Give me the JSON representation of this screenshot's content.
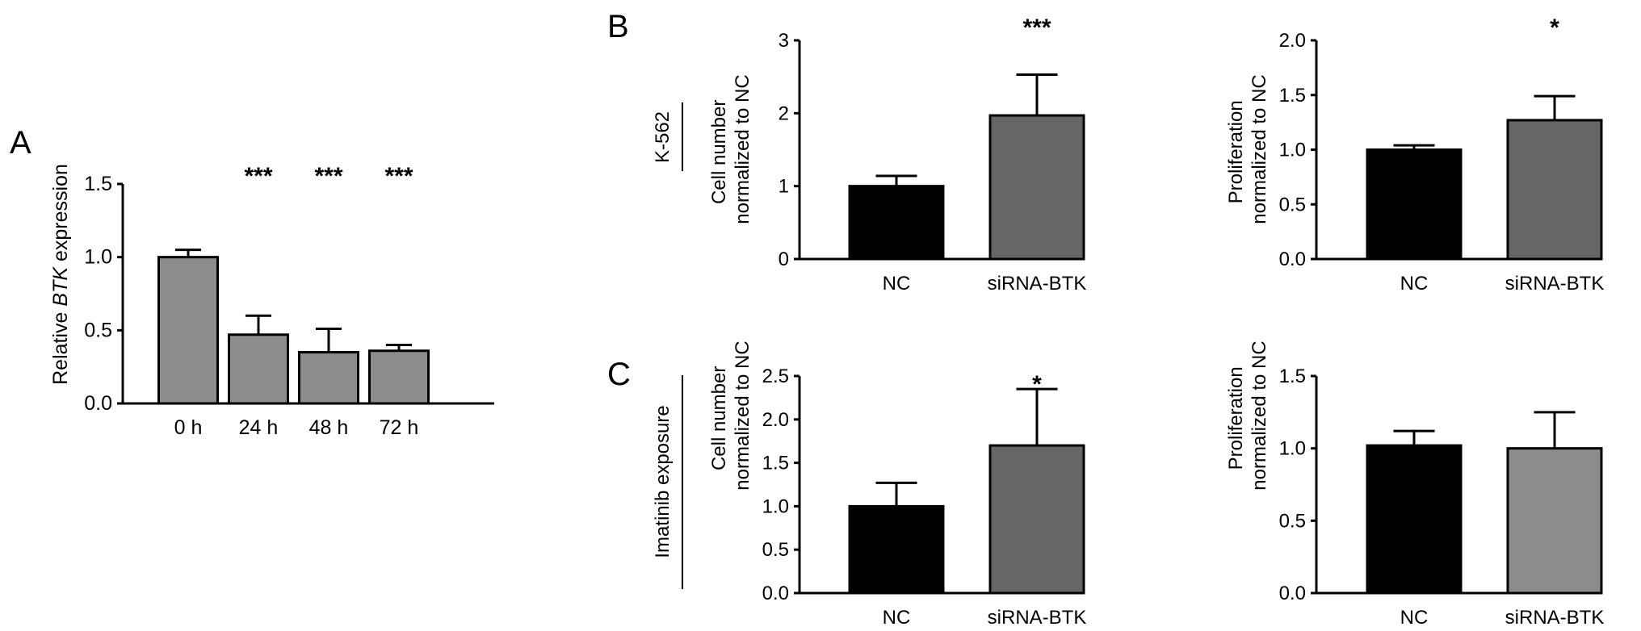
{
  "panel_labels": {
    "A": "A",
    "B": "B",
    "C": "C"
  },
  "row_labels": {
    "B": "K-562",
    "C": "Imatinib exposure"
  },
  "colors": {
    "black_bar": "#000000",
    "dark_gray_bar": "#666666",
    "gray_bar": "#8c8c8c",
    "axis": "#000000"
  },
  "chart_data": [
    {
      "id": "A",
      "type": "bar",
      "categories": [
        "0 h",
        "24 h",
        "48 h",
        "72 h"
      ],
      "values": [
        1.0,
        0.47,
        0.35,
        0.36
      ],
      "errors": [
        0.05,
        0.13,
        0.16,
        0.04
      ],
      "significance": [
        "",
        "***",
        "***",
        "***"
      ],
      "bar_colors": [
        "#8c8c8c",
        "#8c8c8c",
        "#8c8c8c",
        "#8c8c8c"
      ],
      "ylabel": {
        "pre": "Relative ",
        "italic": "BTK",
        "post": " expression"
      },
      "ylim": [
        0,
        1.5
      ],
      "yticks": [
        "0.0",
        "0.5",
        "1.0",
        "1.5"
      ]
    },
    {
      "id": "B1",
      "type": "bar",
      "categories": [
        "NC",
        "siRNA-BTK"
      ],
      "values": [
        1.0,
        1.97
      ],
      "errors": [
        0.14,
        0.56
      ],
      "significance": [
        "",
        "***"
      ],
      "bar_colors": [
        "#000000",
        "#666666"
      ],
      "ylabel_lines": [
        "Cell number",
        "normalized to NC"
      ],
      "ylim": [
        0,
        3
      ],
      "yticks": [
        "0",
        "1",
        "2",
        "3"
      ]
    },
    {
      "id": "B2",
      "type": "bar",
      "categories": [
        "NC",
        "siRNA-BTK"
      ],
      "values": [
        1.0,
        1.27
      ],
      "errors": [
        0.04,
        0.22
      ],
      "significance": [
        "",
        "*"
      ],
      "bar_colors": [
        "#000000",
        "#666666"
      ],
      "ylabel_lines": [
        "Proliferation",
        "normalized to NC"
      ],
      "ylim": [
        0,
        2.0
      ],
      "yticks": [
        "0.0",
        "0.5",
        "1.0",
        "1.5",
        "2.0"
      ]
    },
    {
      "id": "C1",
      "type": "bar",
      "categories": [
        "NC",
        "siRNA-BTK"
      ],
      "values": [
        1.0,
        1.7
      ],
      "errors": [
        0.27,
        0.65
      ],
      "significance": [
        "",
        "*"
      ],
      "bar_colors": [
        "#000000",
        "#666666"
      ],
      "ylabel_lines": [
        "Cell number",
        "normalized to NC"
      ],
      "ylim": [
        0,
        2.5
      ],
      "yticks": [
        "0.0",
        "0.5",
        "1.0",
        "1.5",
        "2.0",
        "2.5"
      ]
    },
    {
      "id": "C2",
      "type": "bar",
      "categories": [
        "NC",
        "siRNA-BTK"
      ],
      "values": [
        1.02,
        1.0
      ],
      "errors": [
        0.1,
        0.25
      ],
      "significance": [
        "",
        ""
      ],
      "bar_colors": [
        "#000000",
        "#8c8c8c"
      ],
      "ylabel_lines": [
        "Proliferation",
        "normalized to NC"
      ],
      "ylim": [
        0,
        1.5
      ],
      "yticks": [
        "0.0",
        "0.5",
        "1.0",
        "1.5"
      ]
    }
  ]
}
